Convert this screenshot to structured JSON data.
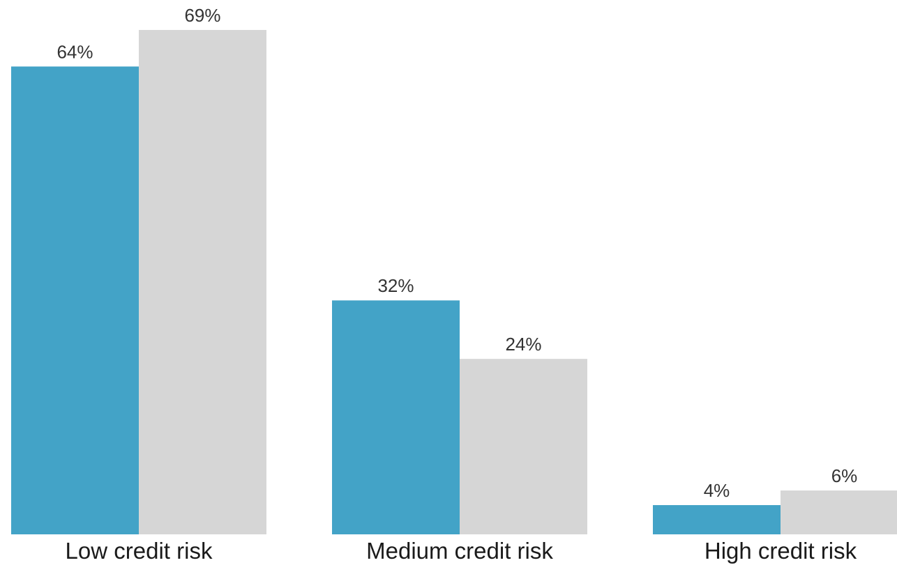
{
  "chart_data": {
    "type": "bar",
    "categories": [
      "Low credit risk",
      "Medium credit risk",
      "High credit risk"
    ],
    "series": [
      {
        "values": [
          64,
          32,
          4
        ],
        "labels": [
          "64%",
          "32%",
          "4%"
        ],
        "color": "#43a3c7"
      },
      {
        "values": [
          69,
          24,
          6
        ],
        "labels": [
          "69%",
          "24%",
          "6%"
        ],
        "color": "#d6d6d6"
      }
    ],
    "title": "",
    "xlabel": "",
    "ylabel": "",
    "ylim": [
      0,
      69
    ],
    "grid": false,
    "legend": "none"
  }
}
